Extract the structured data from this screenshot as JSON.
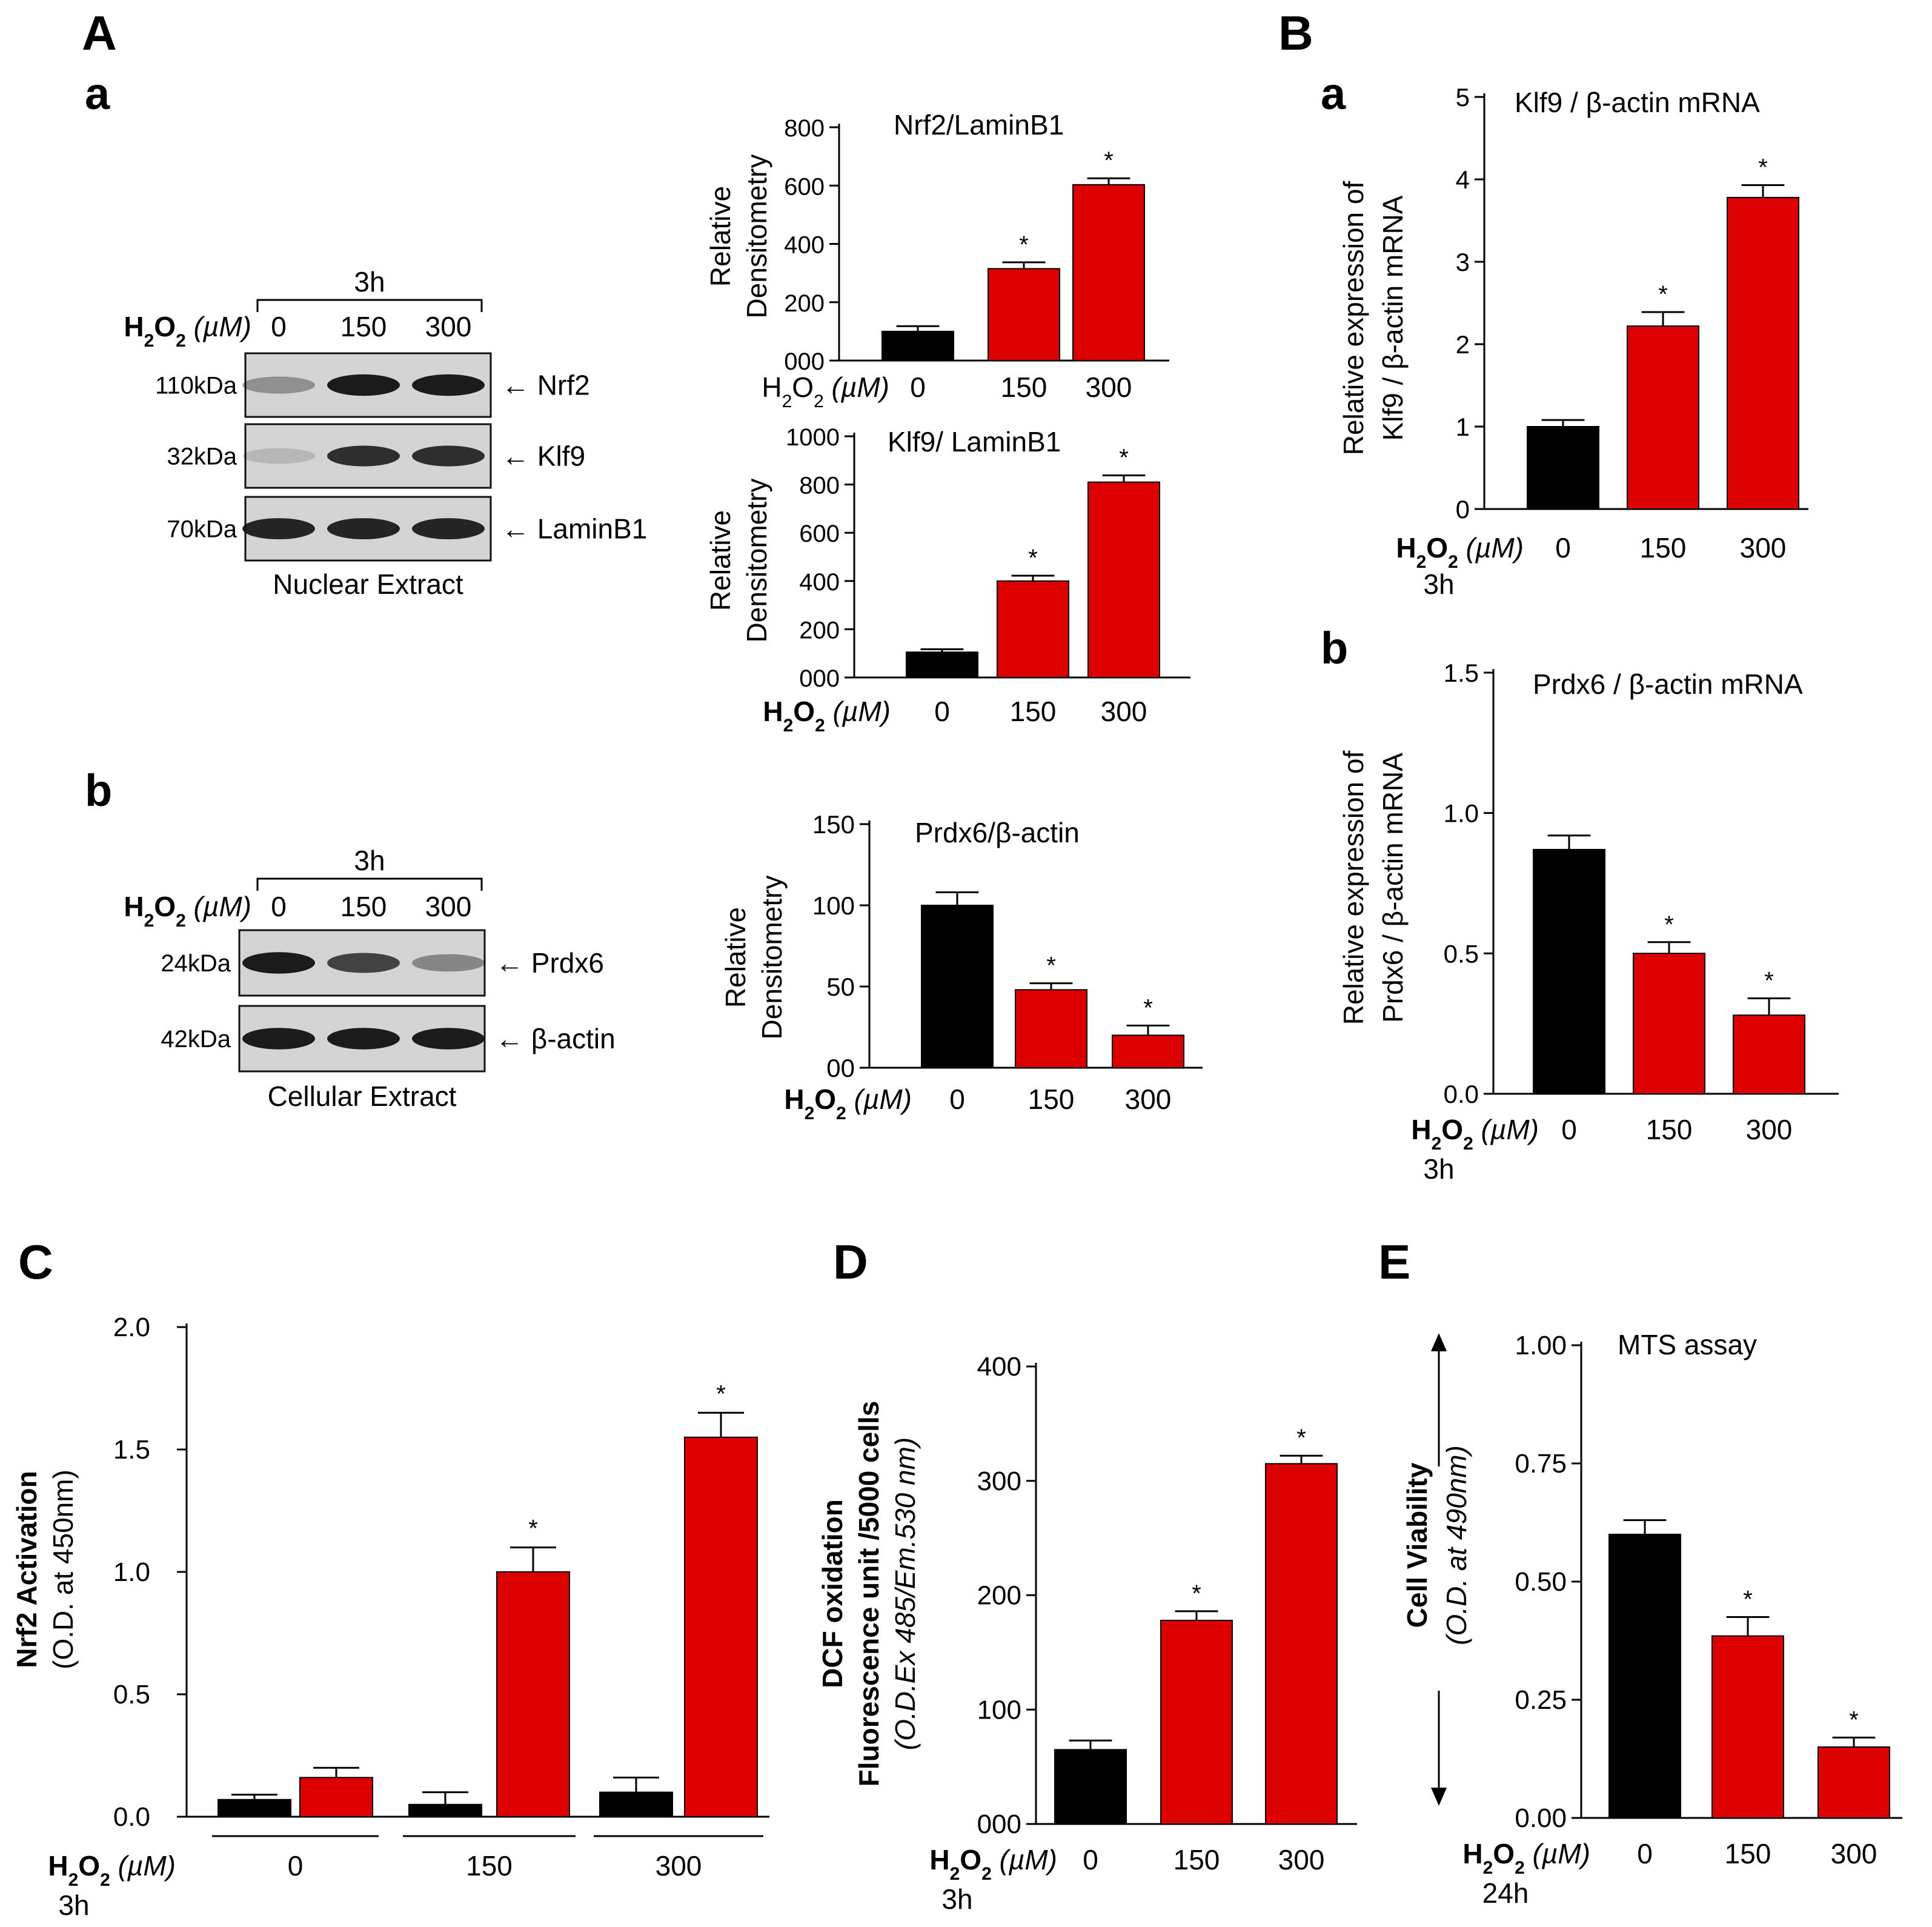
{
  "panels": {
    "A": "A",
    "A_a": "a",
    "A_b": "b",
    "B": "B",
    "B_a": "a",
    "B_b": "b",
    "C": "C",
    "D": "D",
    "E": "E"
  },
  "colors": {
    "control": "#000000",
    "treated": "#dd0000"
  },
  "x_prefix": "H",
  "x_unit": "(µM)",
  "times": {
    "h3": "3h",
    "h24": "24h"
  },
  "sig": "*",
  "blots": {
    "nuclear": {
      "time": "3h",
      "doses": [
        "0",
        "150",
        "300"
      ],
      "rows": [
        {
          "kda": "110kDa",
          "label": "← Nrf2",
          "intensities": [
            0.35,
            0.95,
            0.95
          ]
        },
        {
          "kda": "32kDa",
          "label": "← Klf9",
          "intensities": [
            0.15,
            0.85,
            0.85
          ]
        },
        {
          "kda": "70kDa",
          "label": "← LaminB1",
          "intensities": [
            0.9,
            0.9,
            0.9
          ]
        }
      ],
      "caption": "Nuclear Extract"
    },
    "cellular": {
      "time": "3h",
      "doses": [
        "0",
        "150",
        "300"
      ],
      "rows": [
        {
          "kda": "24kDa",
          "label": "← Prdx6",
          "intensities": [
            0.95,
            0.75,
            0.4
          ]
        },
        {
          "kda": "42kDa",
          "label": "← β-actin",
          "intensities": [
            0.95,
            0.95,
            0.95
          ]
        }
      ],
      "caption": "Cellular Extract"
    }
  },
  "chart_data": [
    {
      "id": "nrf2_lamin",
      "type": "bar",
      "title": "Nrf2/LaminB1",
      "ylabel": [
        "Relative",
        "Densitometry"
      ],
      "categories": [
        "0",
        "150",
        "300"
      ],
      "values": [
        100,
        315,
        603
      ],
      "errors": [
        18,
        22,
        22
      ],
      "significant": [
        false,
        true,
        true
      ],
      "yticks": [
        0,
        200,
        400,
        600,
        800
      ],
      "ytick_labels": [
        "000",
        "200",
        "400",
        "600",
        "800"
      ],
      "ylim": [
        0,
        800
      ]
    },
    {
      "id": "klf9_lamin",
      "type": "bar",
      "title": "Klf9/ LaminB1",
      "ylabel": [
        "Relative",
        "Densitometry"
      ],
      "categories": [
        "0",
        "150",
        "300"
      ],
      "values": [
        105,
        400,
        810
      ],
      "errors": [
        12,
        22,
        28
      ],
      "significant": [
        false,
        true,
        true
      ],
      "yticks": [
        0,
        200,
        400,
        600,
        800,
        1000
      ],
      "ytick_labels": [
        "000",
        "200",
        "400",
        "600",
        "800",
        "1000"
      ],
      "ylim": [
        0,
        1000
      ]
    },
    {
      "id": "prdx6_actin",
      "type": "bar",
      "title": "Prdx6/β-actin",
      "ylabel": [
        "Relative",
        "Densitometry"
      ],
      "categories": [
        "0",
        "150",
        "300"
      ],
      "values": [
        100,
        48,
        20
      ],
      "errors": [
        8,
        4,
        6
      ],
      "significant": [
        false,
        true,
        true
      ],
      "yticks": [
        0,
        50,
        100,
        150
      ],
      "ytick_labels": [
        "00",
        "50",
        "100",
        "150"
      ],
      "ylim": [
        0,
        150
      ]
    },
    {
      "id": "klf9_mrna",
      "type": "bar",
      "title": "Klf9 / β-actin mRNA",
      "ylabel": [
        "Relative expression of",
        "Klf9  / β-actin mRNA"
      ],
      "categories": [
        "0",
        "150",
        "300"
      ],
      "values": [
        1.0,
        2.22,
        3.78
      ],
      "errors": [
        0.08,
        0.17,
        0.15
      ],
      "significant": [
        false,
        true,
        true
      ],
      "yticks": [
        0,
        1,
        2,
        3,
        4,
        5
      ],
      "ytick_labels": [
        "0",
        "1",
        "2",
        "3",
        "4",
        "5"
      ],
      "ylim": [
        0,
        5
      ]
    },
    {
      "id": "prdx6_mrna",
      "type": "bar",
      "title": "Prdx6 / β-actin mRNA",
      "ylabel": [
        "Relative expression of",
        "Prdx6 / β-actin mRNA"
      ],
      "categories": [
        "0",
        "150",
        "300"
      ],
      "values": [
        0.87,
        0.5,
        0.28
      ],
      "errors": [
        0.05,
        0.04,
        0.06
      ],
      "significant": [
        false,
        true,
        true
      ],
      "yticks": [
        0,
        0.5,
        1.0,
        1.5
      ],
      "ytick_labels": [
        "0.0",
        "0.5",
        "1.0",
        "1.5"
      ],
      "ylim": [
        0,
        1.5
      ]
    },
    {
      "id": "nrf2_activation",
      "type": "bar",
      "title": "",
      "ylabel": [
        "Nrf2 Activation",
        "(O.D. at 450nm)"
      ],
      "categories": [
        "0",
        "150",
        "300"
      ],
      "series": [
        {
          "name": "control",
          "values": [
            0.07,
            0.05,
            0.1
          ],
          "errors": [
            0.02,
            0.05,
            0.06
          ],
          "significant": [
            false,
            false,
            false
          ]
        },
        {
          "name": "treated",
          "values": [
            0.16,
            1.0,
            1.55
          ],
          "errors": [
            0.04,
            0.1,
            0.1
          ],
          "significant": [
            false,
            true,
            true
          ]
        }
      ],
      "yticks": [
        0,
        0.5,
        1.0,
        1.5,
        2.0
      ],
      "ytick_labels": [
        "0.0",
        "0.5",
        "1.0",
        "1.5",
        "2.0"
      ],
      "ylim": [
        0,
        2.0
      ]
    },
    {
      "id": "dcf_oxidation",
      "type": "bar",
      "title": "",
      "ylabel": [
        "DCF oxidation",
        "Fluorescence unit /5000 cells",
        "(O.D.Ex 485/Em.530 nm)"
      ],
      "categories": [
        "0",
        "150",
        "300"
      ],
      "values": [
        65,
        178,
        315
      ],
      "errors": [
        8,
        8,
        7
      ],
      "significant": [
        false,
        true,
        true
      ],
      "yticks": [
        0,
        100,
        200,
        300,
        400
      ],
      "ytick_labels": [
        "000",
        "100",
        "200",
        "300",
        "400"
      ],
      "ylim": [
        0,
        400
      ]
    },
    {
      "id": "cell_viability",
      "type": "bar",
      "title": "MTS assay",
      "ylabel": [
        "Cell Viability",
        "(O.D. at 490nm)"
      ],
      "categories": [
        "0",
        "150",
        "300"
      ],
      "values": [
        0.6,
        0.385,
        0.15
      ],
      "errors": [
        0.03,
        0.04,
        0.02
      ],
      "significant": [
        false,
        true,
        true
      ],
      "yticks": [
        0,
        0.25,
        0.5,
        0.75,
        1.0
      ],
      "ytick_labels": [
        "0.00",
        "0.25",
        "0.50",
        "0.75",
        "1.00"
      ],
      "ylim": [
        0,
        1.0
      ]
    }
  ]
}
